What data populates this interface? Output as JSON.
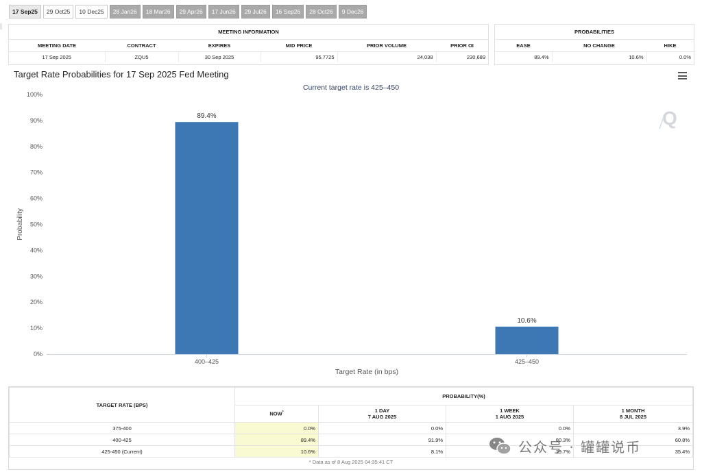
{
  "tabs": [
    {
      "label": "17 Sep25",
      "state": "active"
    },
    {
      "label": "29 Oct25",
      "state": "normal"
    },
    {
      "label": "10 Dec25",
      "state": "normal"
    },
    {
      "label": "28 Jan26",
      "state": "disabled"
    },
    {
      "label": "18 Mar26",
      "state": "disabled"
    },
    {
      "label": "29 Apr26",
      "state": "disabled"
    },
    {
      "label": "17 Jun26",
      "state": "disabled"
    },
    {
      "label": "29 Jul26",
      "state": "disabled"
    },
    {
      "label": "16 Sep26",
      "state": "disabled"
    },
    {
      "label": "28 Oct26",
      "state": "disabled"
    },
    {
      "label": "9 Dec26",
      "state": "disabled"
    }
  ],
  "meeting_info": {
    "title": "MEETING INFORMATION",
    "headers": [
      "MEETING DATE",
      "CONTRACT",
      "EXPIRES",
      "MID PRICE",
      "PRIOR VOLUME",
      "PRIOR OI"
    ],
    "row": [
      "17 Sep 2025",
      "ZQU5",
      "30 Sep 2025",
      "95.7725",
      "24,038",
      "230,689"
    ]
  },
  "probabilities": {
    "title": "PROBABILITIES",
    "headers": [
      "EASE",
      "NO CHANGE",
      "HIKE"
    ],
    "row": [
      "89.4%",
      "10.6%",
      "0.0%"
    ]
  },
  "chart_header": {
    "title": "Target Rate Probabilities for 17 Sep 2025 Fed Meeting",
    "subtitle": "Current target rate is 425–450"
  },
  "chart_data": {
    "type": "bar",
    "title": "Target Rate Probabilities for 17 Sep 2025 Fed Meeting",
    "subtitle": "Current target rate is 425–450",
    "categories": [
      "400–425",
      "425–450"
    ],
    "values": [
      89.4,
      10.6
    ],
    "data_labels": [
      "89.4%",
      "10.6%"
    ],
    "xlabel": "Target Rate (in bps)",
    "ylabel": "Probability",
    "ylim": [
      0,
      100
    ],
    "yticks": [
      "0%",
      "10%",
      "20%",
      "30%",
      "40%",
      "50%",
      "60%",
      "70%",
      "80%",
      "90%",
      "100%"
    ],
    "bar_color": "#3d77b4",
    "grid": false
  },
  "bottom_table": {
    "target_rate_header": "TARGET RATE (BPS)",
    "probability_header": "PROBABILITY(%)",
    "col_now": "NOW",
    "col_now_mark": "*",
    "col_1day": [
      "1 DAY",
      "7 AUG 2025"
    ],
    "col_1week": [
      "1 WEEK",
      "1 AUG 2025"
    ],
    "col_1month": [
      "1 MONTH",
      "8 JUL 2025"
    ],
    "rows": [
      {
        "rate": "375-400",
        "now": "0.0%",
        "day": "0.0%",
        "week": "0.0%",
        "month": "3.9%"
      },
      {
        "rate": "400-425",
        "now": "89.4%",
        "day": "91.9%",
        "week": "80.3%",
        "month": "60.8%"
      },
      {
        "rate": "425-450 (Current)",
        "now": "10.6%",
        "day": "8.1%",
        "week": "19.7%",
        "month": "35.4%"
      }
    ],
    "note": "* Data as of 8 Aug 2025 04:35:41 CT"
  },
  "watermark": {
    "text": "公众号 · 罐罐说币",
    "icon": "wechat-icon"
  },
  "colors": {
    "highlight": "#fafad2",
    "bar": "#3d77b4",
    "tab_disabled": "#a9a9a9"
  }
}
